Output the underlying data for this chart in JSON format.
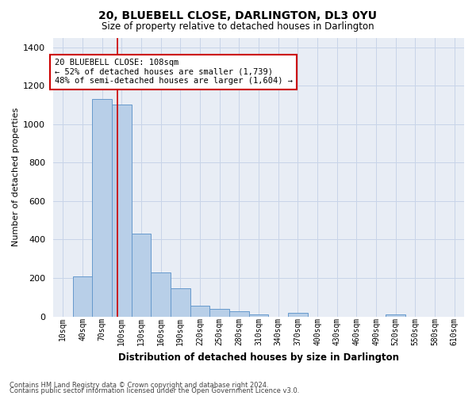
{
  "title": "20, BLUEBELL CLOSE, DARLINGTON, DL3 0YU",
  "subtitle": "Size of property relative to detached houses in Darlington",
  "xlabel": "Distribution of detached houses by size in Darlington",
  "ylabel": "Number of detached properties",
  "footnote1": "Contains HM Land Registry data © Crown copyright and database right 2024.",
  "footnote2": "Contains public sector information licensed under the Open Government Licence v3.0.",
  "property_size": 108,
  "annotation_text": "20 BLUEBELL CLOSE: 108sqm\n← 52% of detached houses are smaller (1,739)\n48% of semi-detached houses are larger (1,604) →",
  "vline_color": "#cc0000",
  "annotation_box_color": "#cc0000",
  "bar_color": "#b8cfe8",
  "bar_edge_color": "#6699cc",
  "background_color": "#ffffff",
  "plot_bg_color": "#e8edf5",
  "grid_color": "#c8d4e8",
  "categories": [
    "10sqm",
    "40sqm",
    "70sqm",
    "100sqm",
    "130sqm",
    "160sqm",
    "190sqm",
    "220sqm",
    "250sqm",
    "280sqm",
    "310sqm",
    "340sqm",
    "370sqm",
    "400sqm",
    "430sqm",
    "460sqm",
    "490sqm",
    "520sqm",
    "550sqm",
    "580sqm",
    "610sqm"
  ],
  "bin_starts": [
    10,
    40,
    70,
    100,
    130,
    160,
    190,
    220,
    250,
    280,
    310,
    340,
    370,
    400,
    430,
    460,
    490,
    520,
    550,
    580,
    610
  ],
  "values": [
    0,
    210,
    1130,
    1100,
    430,
    230,
    145,
    55,
    38,
    25,
    10,
    0,
    18,
    0,
    0,
    0,
    0,
    12,
    0,
    0,
    0
  ],
  "ylim": [
    0,
    1450
  ],
  "yticks": [
    0,
    200,
    400,
    600,
    800,
    1000,
    1200,
    1400
  ],
  "figwidth": 6.0,
  "figheight": 5.0,
  "dpi": 100
}
